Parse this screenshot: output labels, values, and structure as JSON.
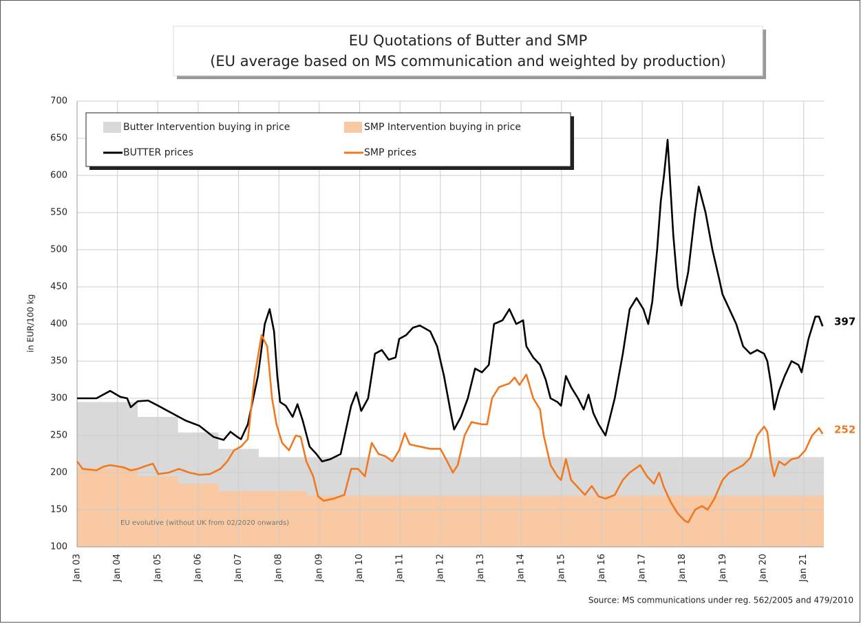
{
  "chart_data": {
    "type": "line",
    "title": "EU Quotations of Butter and SMP",
    "subtitle": "(EU average based on MS communication and weighted by production)",
    "ylabel": "in EUR/100 kg",
    "annotation": "EU evolutive (without UK from 02/2020 onwards)",
    "source": "Source: MS communications under reg. 562/2005 and 479/2010",
    "xlim": [
      2003,
      2021.5
    ],
    "ylim": [
      100,
      700
    ],
    "yticks": [
      100,
      150,
      200,
      250,
      300,
      350,
      400,
      450,
      500,
      550,
      600,
      650,
      700
    ],
    "xticks": [
      {
        "value": 2003,
        "label": "Jan 03"
      },
      {
        "value": 2004,
        "label": "Jan 04"
      },
      {
        "value": 2005,
        "label": "Jan 05"
      },
      {
        "value": 2006,
        "label": "Jan 06"
      },
      {
        "value": 2007,
        "label": "Jan 07"
      },
      {
        "value": 2008,
        "label": "Jan 08"
      },
      {
        "value": 2009,
        "label": "Jan 09"
      },
      {
        "value": 2010,
        "label": "Jan 10"
      },
      {
        "value": 2011,
        "label": "Jan 11"
      },
      {
        "value": 2012,
        "label": "Jan 12"
      },
      {
        "value": 2013,
        "label": "Jan 13"
      },
      {
        "value": 2014,
        "label": "Jan 14"
      },
      {
        "value": 2015,
        "label": "Jan 15"
      },
      {
        "value": 2016,
        "label": "Jan 16"
      },
      {
        "value": 2017,
        "label": "Jan 17"
      },
      {
        "value": 2018,
        "label": "Jan 18"
      },
      {
        "value": 2019,
        "label": "Jan 19"
      },
      {
        "value": 2020,
        "label": "Jan 20"
      },
      {
        "value": 2021,
        "label": "Jan 21"
      }
    ],
    "grid": true,
    "series": [
      {
        "name": "Butter Intervention buying in price",
        "type": "area",
        "color": "#d9d9d9",
        "x": [
          2003,
          2004.5,
          2004.5,
          2005.5,
          2005.5,
          2006.5,
          2006.5,
          2007.5,
          2007.5,
          2021.5
        ],
        "values": [
          295,
          295,
          275,
          275,
          254,
          254,
          232,
          232,
          221,
          221
        ]
      },
      {
        "name": "SMP Intervention buying in price",
        "type": "area",
        "color": "#f8c9a3",
        "x": [
          2003,
          2004.5,
          2004.5,
          2005.5,
          2005.5,
          2006.5,
          2006.5,
          2008.7,
          2008.7,
          2021.5
        ],
        "values": [
          206,
          206,
          195,
          195,
          185,
          185,
          175,
          175,
          169,
          169
        ]
      },
      {
        "name": "BUTTER prices",
        "type": "line",
        "color": "#000000",
        "x": [
          2003.0,
          2003.48,
          2003.82,
          2004.07,
          2004.24,
          2004.33,
          2004.5,
          2004.76,
          2005.01,
          2005.35,
          2005.69,
          2006.03,
          2006.38,
          2006.63,
          2006.8,
          2006.97,
          2007.06,
          2007.23,
          2007.48,
          2007.65,
          2007.77,
          2007.88,
          2007.96,
          2008.03,
          2008.17,
          2008.34,
          2008.46,
          2008.59,
          2008.76,
          2008.93,
          2009.07,
          2009.27,
          2009.53,
          2009.79,
          2009.92,
          2010.04,
          2010.21,
          2010.38,
          2010.55,
          2010.72,
          2010.89,
          2010.98,
          2011.15,
          2011.32,
          2011.49,
          2011.75,
          2011.92,
          2012.09,
          2012.26,
          2012.34,
          2012.51,
          2012.68,
          2012.86,
          2013.03,
          2013.2,
          2013.33,
          2013.54,
          2013.71,
          2013.88,
          2014.05,
          2014.13,
          2014.3,
          2014.47,
          2014.61,
          2014.73,
          2014.9,
          2014.99,
          2015.11,
          2015.24,
          2015.41,
          2015.55,
          2015.67,
          2015.79,
          2015.92,
          2016.09,
          2016.32,
          2016.52,
          2016.69,
          2016.86,
          2017.03,
          2017.15,
          2017.25,
          2017.37,
          2017.46,
          2017.54,
          2017.63,
          2017.77,
          2017.88,
          2017.97,
          2018.14,
          2018.31,
          2018.4,
          2018.57,
          2018.74,
          2018.91,
          2018.99,
          2019.16,
          2019.33,
          2019.5,
          2019.68,
          2019.85,
          2020.02,
          2020.1,
          2020.19,
          2020.27,
          2020.39,
          2020.53,
          2020.7,
          2020.87,
          2020.95,
          2021.12,
          2021.29,
          2021.38,
          2021.47
        ],
        "values": [
          300,
          300,
          310,
          302,
          300,
          288,
          296,
          297,
          290,
          280,
          270,
          263,
          248,
          244,
          255,
          248,
          245,
          265,
          330,
          400,
          420,
          390,
          330,
          295,
          290,
          275,
          292,
          270,
          235,
          225,
          215,
          218,
          225,
          290,
          308,
          283,
          300,
          360,
          365,
          352,
          355,
          380,
          385,
          395,
          398,
          390,
          370,
          330,
          280,
          258,
          275,
          300,
          340,
          335,
          345,
          400,
          405,
          420,
          400,
          405,
          370,
          355,
          345,
          325,
          300,
          295,
          290,
          330,
          315,
          300,
          285,
          305,
          280,
          265,
          250,
          300,
          360,
          420,
          435,
          420,
          400,
          430,
          500,
          565,
          600,
          648,
          520,
          450,
          425,
          470,
          550,
          585,
          550,
          500,
          460,
          440,
          420,
          400,
          370,
          360,
          365,
          360,
          350,
          320,
          285,
          310,
          330,
          350,
          345,
          335,
          380,
          410,
          410,
          397
        ]
      },
      {
        "name": "SMP prices",
        "type": "line",
        "color": "#f07820",
        "x": [
          2003.0,
          2003.14,
          2003.48,
          2003.65,
          2003.82,
          2004.16,
          2004.33,
          2004.5,
          2004.76,
          2004.88,
          2005.01,
          2005.27,
          2005.52,
          2005.78,
          2006.03,
          2006.29,
          2006.55,
          2006.72,
          2006.89,
          2007.06,
          2007.23,
          2007.4,
          2007.57,
          2007.71,
          2007.83,
          2007.94,
          2008.08,
          2008.25,
          2008.42,
          2008.54,
          2008.68,
          2008.85,
          2008.97,
          2009.11,
          2009.36,
          2009.62,
          2009.79,
          2009.96,
          2010.13,
          2010.3,
          2010.47,
          2010.64,
          2010.81,
          2010.98,
          2011.12,
          2011.24,
          2011.49,
          2011.75,
          2012.0,
          2012.17,
          2012.31,
          2012.43,
          2012.6,
          2012.77,
          2013.03,
          2013.16,
          2013.28,
          2013.45,
          2013.71,
          2013.84,
          2013.96,
          2014.13,
          2014.3,
          2014.47,
          2014.56,
          2014.73,
          2014.9,
          2014.99,
          2015.11,
          2015.24,
          2015.41,
          2015.58,
          2015.75,
          2015.92,
          2016.09,
          2016.32,
          2016.52,
          2016.69,
          2016.95,
          2017.12,
          2017.29,
          2017.42,
          2017.54,
          2017.71,
          2017.88,
          2018.06,
          2018.14,
          2018.31,
          2018.48,
          2018.62,
          2018.79,
          2018.99,
          2019.16,
          2019.33,
          2019.5,
          2019.68,
          2019.85,
          2020.02,
          2020.1,
          2020.19,
          2020.27,
          2020.39,
          2020.53,
          2020.7,
          2020.87,
          2021.04,
          2021.21,
          2021.38,
          2021.47
        ],
        "values": [
          215,
          205,
          203,
          208,
          210,
          207,
          203,
          205,
          210,
          212,
          198,
          200,
          205,
          200,
          197,
          198,
          205,
          215,
          230,
          235,
          245,
          330,
          385,
          370,
          300,
          265,
          240,
          230,
          250,
          248,
          215,
          195,
          168,
          162,
          165,
          170,
          205,
          205,
          195,
          240,
          225,
          222,
          215,
          230,
          253,
          238,
          235,
          232,
          232,
          215,
          200,
          210,
          250,
          268,
          265,
          265,
          300,
          315,
          320,
          328,
          318,
          332,
          300,
          285,
          250,
          210,
          195,
          190,
          218,
          190,
          180,
          170,
          182,
          168,
          165,
          170,
          190,
          200,
          210,
          195,
          185,
          200,
          180,
          160,
          145,
          135,
          133,
          150,
          155,
          150,
          165,
          190,
          200,
          205,
          210,
          220,
          250,
          262,
          255,
          215,
          195,
          215,
          210,
          218,
          220,
          230,
          250,
          260,
          252
        ]
      }
    ]
  }
}
